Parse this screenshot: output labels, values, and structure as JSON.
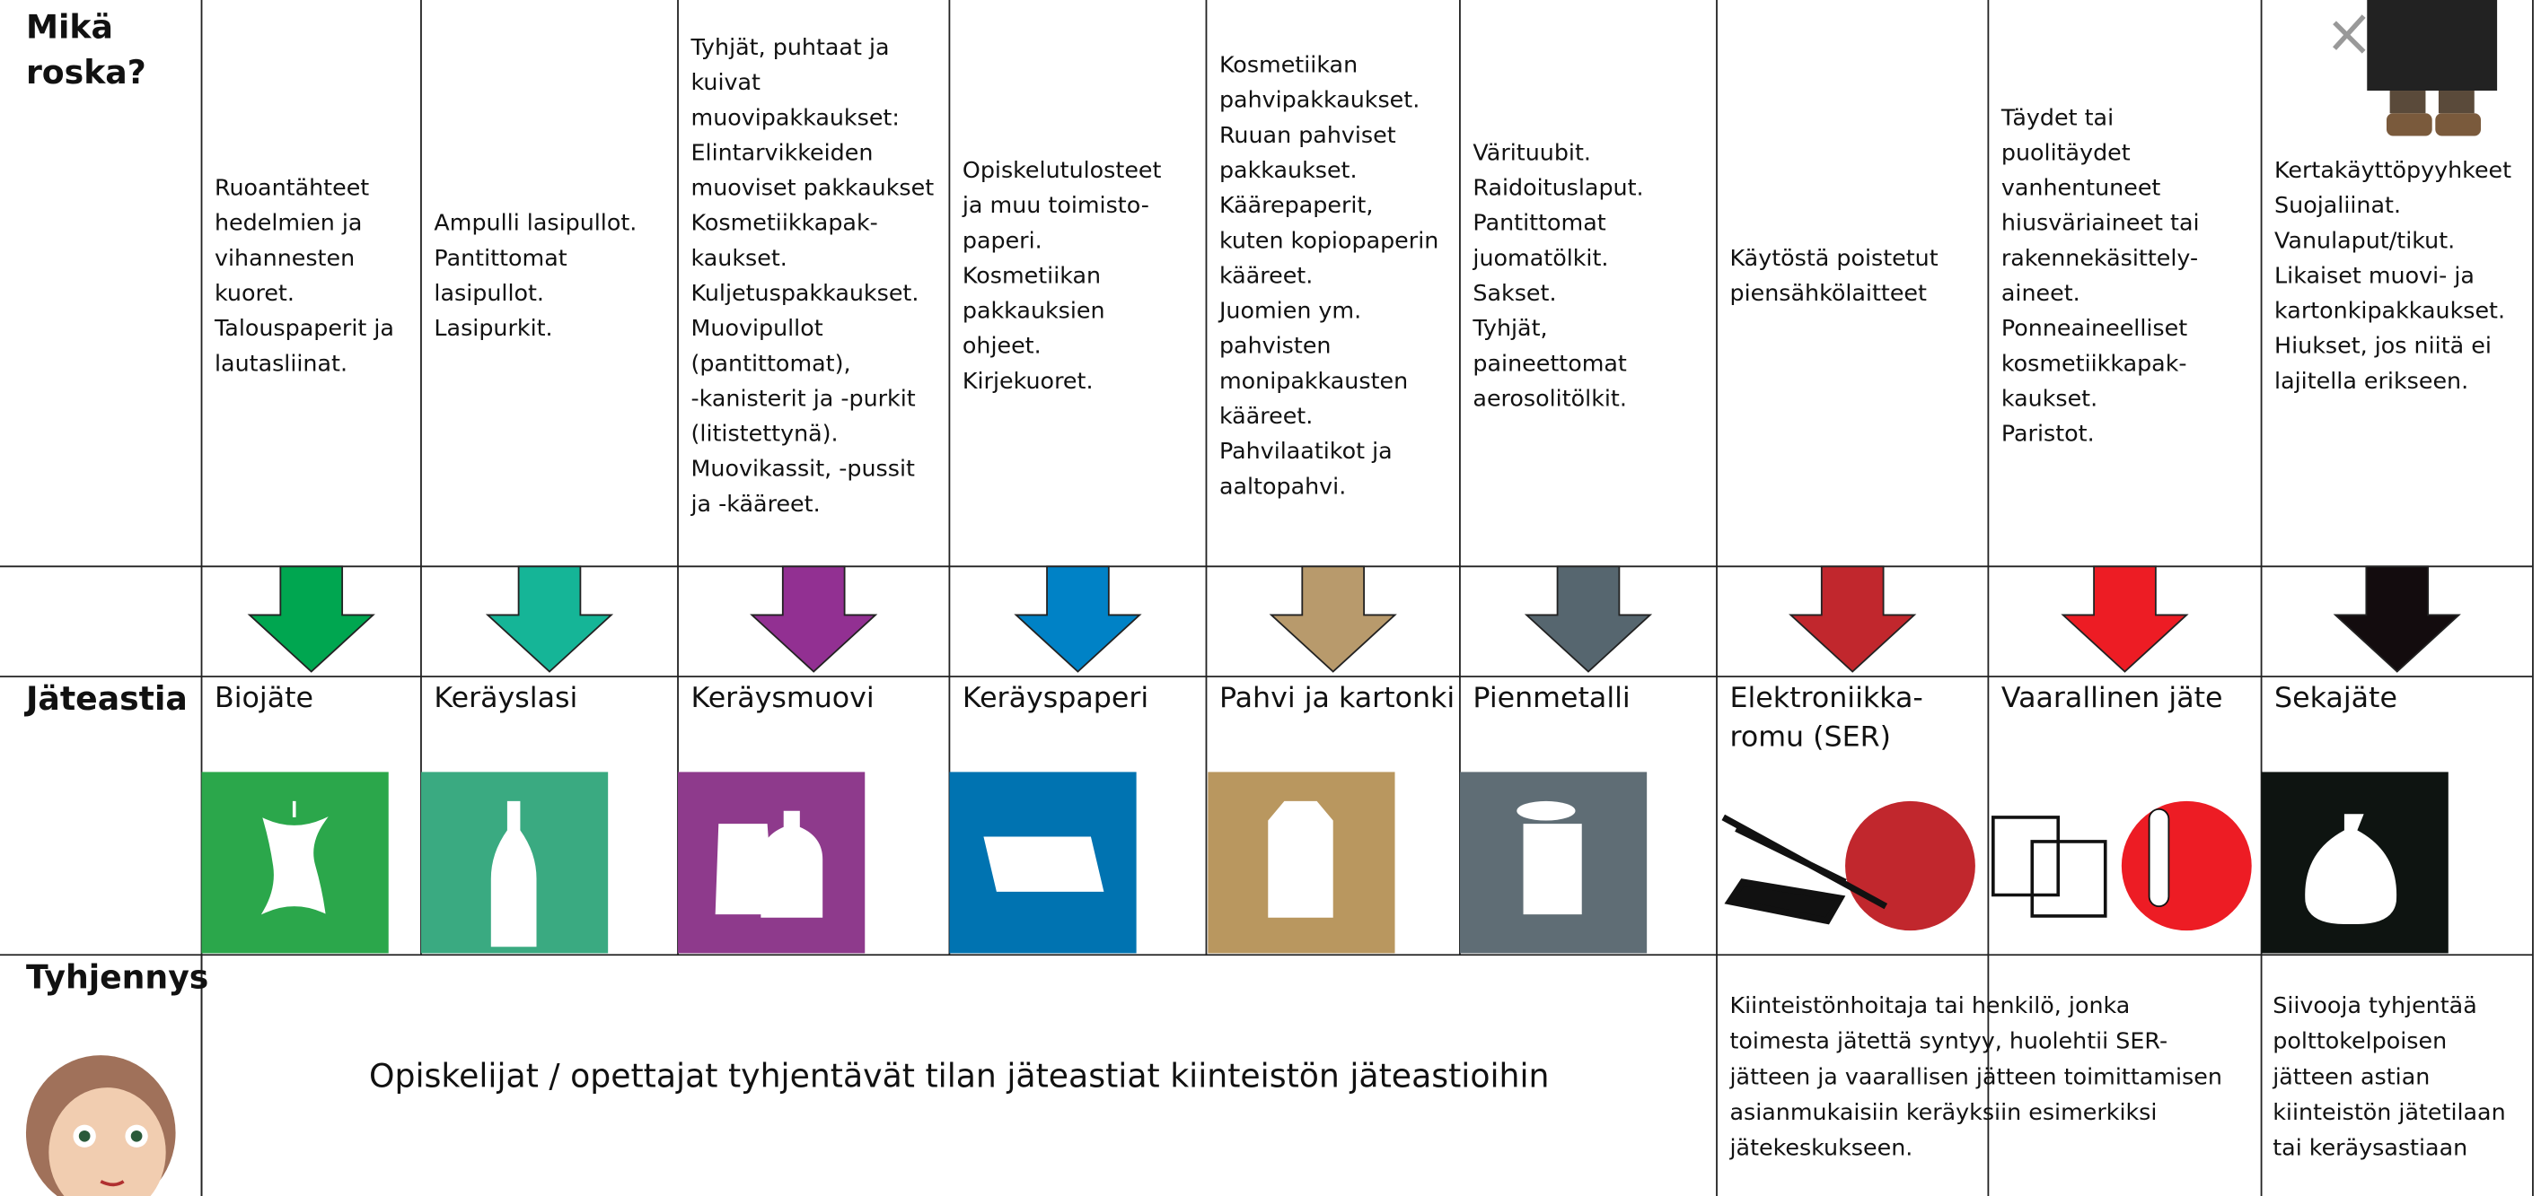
{
  "row_labels": {
    "what": [
      "Mikä",
      "roska?"
    ],
    "bin": "Jäteastia",
    "emptying": "Tyhjennys"
  },
  "columns": [
    {
      "description": [
        "Ruoantähteet",
        "hedelmien ja",
        "vihannesten",
        "kuoret.",
        "Talouspaperit ja",
        "lautasliinat."
      ],
      "bin": [
        "Biojäte"
      ]
    },
    {
      "description": [
        "Ampulli lasipullot.",
        "Pantittomat",
        "lasipullot.",
        "Lasipurkit."
      ],
      "bin": [
        "Keräyslasi"
      ]
    },
    {
      "description": [
        "Tyhjät, puhtaat ja",
        "kuivat",
        "muovipakkaukset:",
        "Elintarvikkeiden",
        "muoviset pakkaukset",
        "Kosmetiikkapak-",
        "kaukset.",
        "Kuljetuspakkaukset.",
        "Muovipullot",
        "(pantittomat),",
        "-kanisterit ja -purkit",
        "(litistettynä).",
        "Muovikassit, -pussit",
        "ja -kääreet."
      ],
      "bin": [
        "Keräysmuovi"
      ]
    },
    {
      "description": [
        "Opiskelutulosteet",
        "ja muu toimisto-",
        "paperi.",
        "Kosmetiikan",
        "pakkauksien",
        "ohjeet.",
        "Kirjekuoret."
      ],
      "bin": [
        "Keräyspaperi"
      ]
    },
    {
      "description": [
        "Kosmetiikan",
        "pahvipakkaukset.",
        "Ruuan pahviset",
        "pakkaukset.",
        "Käärepaperit,",
        "kuten kopiopaperin",
        "kääreet.",
        "Juomien ym.",
        "pahvisten",
        "monipakkausten",
        "kääreet.",
        "Pahvilaatikot ja",
        "aaltopahvi."
      ],
      "bin": [
        "Pahvi ja kartonki"
      ]
    },
    {
      "description": [
        "Värituubit.",
        "Raidoituslaput.",
        "Pantittomat",
        "juomatölkit.",
        "Sakset.",
        "Tyhjät,",
        "paineettomat",
        "aerosolitölkit."
      ],
      "bin": [
        "Pienmetalli"
      ]
    },
    {
      "description": [
        "Käytöstä poistetut",
        "piensähkölaitteet"
      ],
      "bin": [
        "Elektroniikka-",
        "romu (SER)"
      ]
    },
    {
      "description": [
        "Täydet tai",
        "puolitäydet",
        "vanhentuneet",
        "hiusväriaineet tai",
        "rakennekäsittely-",
        "aineet.",
        "Ponneaineelliset",
        "kosmetiikkapak-",
        "kaukset.",
        "Paristot."
      ],
      "bin": [
        "Vaarallinen jäte"
      ]
    },
    {
      "description": [
        "Kertakäyttöpyyhkeet",
        "Suojaliinat.",
        "Vanulaput/tikut.",
        "Likaiset muovi- ja",
        "kartonkipakkaukset.",
        "Hiukset, jos niitä ei",
        "lajitella erikseen."
      ],
      "bin": [
        "Sekajäte"
      ]
    }
  ],
  "emptying": {
    "common": "Opiskelijat / opettajat tyhjentävät tilan jäteastiat kiinteistön jäteastioihin",
    "electronics_hazardous": [
      "Kiinteistönhoitaja tai henkilö, jonka",
      "toimesta jätettä syntyy, huolehtii SER-",
      "jätteen ja vaarallisen jätteen toimittamisen",
      "asianmukaisiin keräyksiin esimerkiksi",
      "jätekeskukseen."
    ],
    "mixed": [
      "Siivooja tyhjentää",
      "polttokelpoisen",
      "jätteen astian",
      "kiinteistön jätetilaan",
      "tai keräysastiaan"
    ]
  }
}
